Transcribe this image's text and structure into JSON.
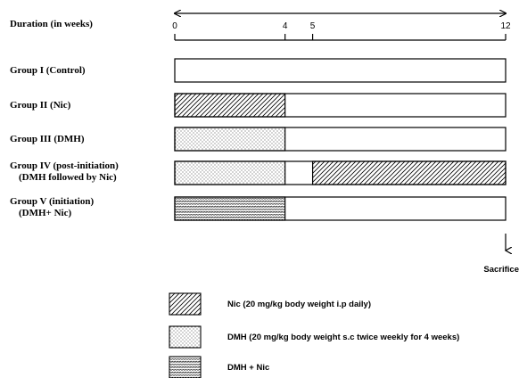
{
  "duration": {
    "label": "Duration (in weeks)",
    "ticks": [
      {
        "week": 0,
        "label": "0"
      },
      {
        "week": 4,
        "label": "4"
      },
      {
        "week": 5,
        "label": "5"
      },
      {
        "week": 12,
        "label": "12"
      }
    ],
    "max_week": 12
  },
  "groups": [
    {
      "label": "Group I (Control)",
      "sublabel": "",
      "segments": []
    },
    {
      "label": "Group II (Nic)",
      "sublabel": "",
      "segments": [
        {
          "start": 0,
          "end": 4,
          "treatment": "nic"
        }
      ]
    },
    {
      "label": "Group III (DMH)",
      "sublabel": "",
      "segments": [
        {
          "start": 0,
          "end": 4,
          "treatment": "dmh"
        }
      ]
    },
    {
      "label": "Group IV (post-initiation)",
      "sublabel": "(DMH followed by Nic)",
      "segments": [
        {
          "start": 0,
          "end": 4,
          "treatment": "dmh"
        },
        {
          "start": 5,
          "end": 12,
          "treatment": "nic"
        }
      ]
    },
    {
      "label": "Group V (initiation)",
      "sublabel": "(DMH+ Nic)",
      "segments": [
        {
          "start": 0,
          "end": 4,
          "treatment": "dmh_nic"
        }
      ]
    }
  ],
  "sacrifice_label": "Sacrifice",
  "legend": [
    {
      "treatment": "nic",
      "label": "Nic (20 mg/kg body weight i.p daily)"
    },
    {
      "treatment": "dmh",
      "label": "DMH (20 mg/kg body weight s.c twice weekly for 4 weeks)"
    },
    {
      "treatment": "dmh_nic",
      "label": "DMH + Nic"
    }
  ]
}
